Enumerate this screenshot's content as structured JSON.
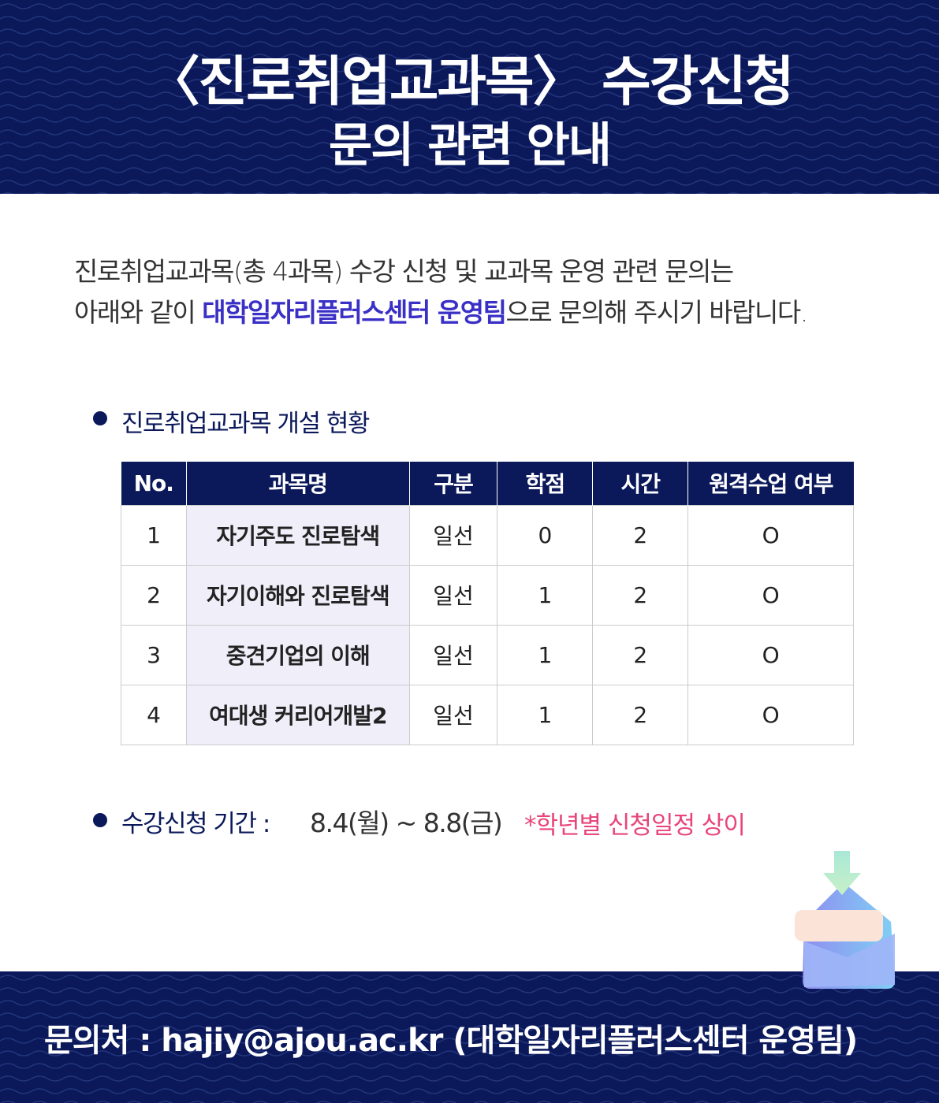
{
  "header": {
    "title_line1": "〈진로취업교과목〉 수강신청",
    "title_line2": "문의 관련 안내"
  },
  "intro": {
    "line1": "진로취업교과목(총 4과목) 수강 신청 및 교과목 운영 관련 문의는",
    "line2_pre": "아래와 같이 ",
    "line2_highlight": "대학일자리플러스센터 운영팀",
    "line2_post": "으로 문의해 주시기 바랍니다."
  },
  "section1": {
    "label": "진로취업교과목 개설 현황"
  },
  "table": {
    "headers": [
      "No.",
      "과목명",
      "구분",
      "학점",
      "시간",
      "원격수업 여부"
    ],
    "rows": [
      [
        "1",
        "자기주도 진로탐색",
        "일선",
        "0",
        "2",
        "O"
      ],
      [
        "2",
        "자기이해와 진로탐색",
        "일선",
        "1",
        "2",
        "O"
      ],
      [
        "3",
        "중견기업의 이해",
        "일선",
        "1",
        "2",
        "O"
      ],
      [
        "4",
        "여대생 커리어개발2",
        "일선",
        "1",
        "2",
        "O"
      ]
    ]
  },
  "section2": {
    "label": "수강신청 기간 :",
    "period": "8.4(월) ~ 8.8(금)",
    "note": "*학년별 신청일정 상이"
  },
  "footer": {
    "contact": "문의처 :  hajiy@ajou.ac.kr  (대학일자리플러스센터 운영팀)"
  },
  "colors": {
    "navy": "#0b195b",
    "highlight": "#3a30c6",
    "note": "#e8457a"
  },
  "icons": [
    "mail-download-icon"
  ]
}
